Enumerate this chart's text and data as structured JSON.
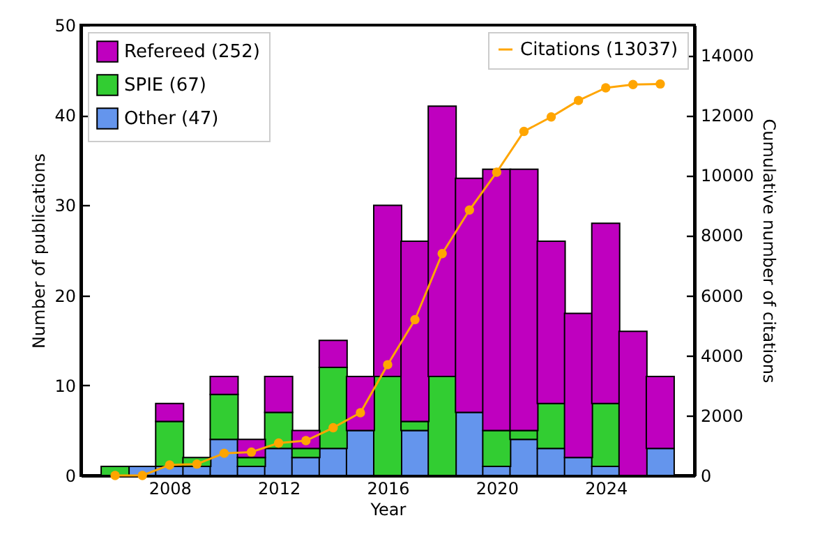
{
  "chart_data": {
    "type": "bar",
    "stacked": true,
    "xlabel": "Year",
    "ylabel": "Number of publications",
    "y2label": "Cumulative number of citations",
    "x": [
      2006,
      2007,
      2008,
      2009,
      2010,
      2011,
      2012,
      2013,
      2014,
      2015,
      2016,
      2017,
      2018,
      2019,
      2020,
      2021,
      2022,
      2023,
      2024,
      2025,
      2026
    ],
    "xlim": [
      2005,
      2027
    ],
    "xticks": [
      2008,
      2012,
      2016,
      2020,
      2024
    ],
    "ylim": [
      0,
      50
    ],
    "yticks": [
      0,
      10,
      20,
      30,
      40,
      50
    ],
    "y2lim": [
      0,
      15000
    ],
    "y2ticks": [
      0,
      2000,
      4000,
      6000,
      8000,
      10000,
      12000,
      14000
    ],
    "legend": "top",
    "grid": false,
    "series": [
      {
        "name": "Other (47)",
        "color": "#6495ed",
        "values": [
          0,
          1,
          1,
          1,
          4,
          1,
          3,
          2,
          3,
          5,
          0,
          5,
          0,
          7,
          1,
          4,
          3,
          2,
          1,
          0,
          3
        ]
      },
      {
        "name": "SPIE (67)",
        "color": "#32cd32",
        "values": [
          1,
          0,
          5,
          1,
          5,
          1,
          4,
          1,
          9,
          0,
          11,
          1,
          11,
          0,
          4,
          1,
          5,
          0,
          7,
          0,
          0
        ]
      },
      {
        "name": "Refereed (252)",
        "color": "#bf00bf",
        "values": [
          0,
          0,
          2,
          0,
          2,
          2,
          4,
          2,
          3,
          6,
          19,
          20,
          30,
          26,
          29,
          29,
          18,
          16,
          20,
          16,
          8
        ]
      },
      {
        "name": "Citations (13037)",
        "color": "#ffa500",
        "type": "line",
        "axis": "y2",
        "marker": "circle",
        "values": [
          0,
          0,
          350,
          380,
          740,
          780,
          1080,
          1160,
          1590,
          2090,
          3690,
          5190,
          7390,
          8840,
          10100,
          11460,
          11940,
          12490,
          12910,
          13020,
          13040
        ]
      }
    ]
  }
}
